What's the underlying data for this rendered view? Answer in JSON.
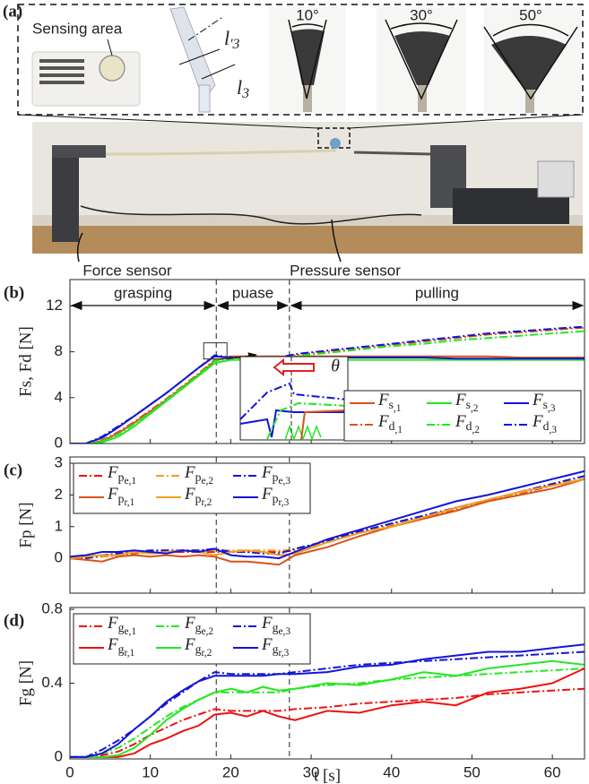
{
  "panel_a": {
    "label": "(a)",
    "sensing_area": "Sensing area",
    "length_top": "l'3",
    "length_bottom": "l3",
    "angles": [
      "10°",
      "30°",
      "50°"
    ],
    "force_sensor": "Force sensor",
    "pressure_sensor": "Pressure sensor"
  },
  "chart_data": [
    {
      "type": "line",
      "panel_label": "(b)",
      "ylabel": "Fs, Fd [N]",
      "xlim": [
        0,
        64
      ],
      "xticks": [
        0,
        10,
        20,
        30,
        40,
        50,
        60
      ],
      "xtick_labels": false,
      "ylim": [
        0,
        14.3
      ],
      "yticks": [
        0,
        4,
        8,
        12
      ],
      "vlines": [
        18.2,
        27.3
      ],
      "phase_labels": [
        "grasping",
        "puase",
        "pulling"
      ],
      "inset_label": "θ",
      "legend": "lower right",
      "x": [
        0,
        2,
        4,
        6,
        8,
        10,
        12,
        14,
        16,
        18,
        20,
        22,
        24,
        26,
        28,
        32,
        36,
        40,
        44,
        48,
        52,
        56,
        60,
        64
      ],
      "series": [
        {
          "name": "Fs,1",
          "color": "#d95319",
          "linestyle": "solid",
          "values": [
            0,
            0,
            0.2,
            0.9,
            1.8,
            2.8,
            3.8,
            4.9,
            6.0,
            7.2,
            7.6,
            7.6,
            7.6,
            7.6,
            7.6,
            7.6,
            7.6,
            7.6,
            7.6,
            7.6,
            7.6,
            7.5,
            7.5,
            7.5
          ]
        },
        {
          "name": "Fs,2",
          "color": "#22e822",
          "linestyle": "solid",
          "values": [
            0,
            0,
            0.1,
            0.6,
            1.5,
            2.6,
            3.7,
            4.8,
            5.9,
            7.0,
            7.3,
            7.3,
            7.3,
            7.3,
            7.3,
            7.3,
            7.3,
            7.3,
            7.3,
            7.3,
            7.3,
            7.3,
            7.3,
            7.3
          ]
        },
        {
          "name": "Fs,3",
          "color": "#1414d8",
          "linestyle": "solid",
          "values": [
            0,
            0,
            0.5,
            1.4,
            2.4,
            3.4,
            4.4,
            5.5,
            6.6,
            7.6,
            7.5,
            7.5,
            7.5,
            7.5,
            7.5,
            7.5,
            7.5,
            7.5,
            7.5,
            7.4,
            7.4,
            7.4,
            7.4,
            7.4
          ]
        },
        {
          "name": "Fd,1",
          "color": "#d95319",
          "linestyle": "dashdot",
          "values": [
            0,
            0,
            0.3,
            1.0,
            1.9,
            2.9,
            3.9,
            5.0,
            6.1,
            7.3,
            7.5,
            7.5,
            7.5,
            7.5,
            7.7,
            8.0,
            8.3,
            8.6,
            8.9,
            9.2,
            9.5,
            9.7,
            9.9,
            10.1
          ]
        },
        {
          "name": "Fd,2",
          "color": "#22e822",
          "linestyle": "dashdot",
          "values": [
            0,
            0,
            0.2,
            0.8,
            1.7,
            2.7,
            3.8,
            4.9,
            6.0,
            7.2,
            7.4,
            7.4,
            7.4,
            7.4,
            7.6,
            7.9,
            8.2,
            8.5,
            8.7,
            9.0,
            9.2,
            9.4,
            9.6,
            9.8
          ]
        },
        {
          "name": "Fd,3",
          "color": "#1414d8",
          "linestyle": "dashdot",
          "values": [
            0,
            0,
            0.6,
            1.5,
            2.4,
            3.4,
            4.4,
            5.5,
            6.6,
            7.7,
            7.5,
            7.5,
            7.5,
            7.5,
            7.8,
            8.1,
            8.4,
            8.7,
            9.0,
            9.3,
            9.6,
            9.8,
            10.0,
            10.2
          ]
        }
      ]
    },
    {
      "type": "line",
      "panel_label": "(c)",
      "ylabel": "Fp [N]",
      "xlim": [
        0,
        64
      ],
      "xticks": [
        0,
        10,
        20,
        30,
        40,
        50,
        60
      ],
      "xtick_labels": false,
      "ylim": [
        -1.1,
        3.2
      ],
      "yticks": [
        0,
        1,
        2,
        3
      ],
      "vlines": [
        18.2,
        27.3
      ],
      "legend": "upper left",
      "x": [
        0,
        2,
        4,
        6,
        8,
        10,
        12,
        14,
        16,
        18,
        20,
        22,
        24,
        26,
        28,
        32,
        36,
        40,
        44,
        48,
        52,
        56,
        60,
        64
      ],
      "series": [
        {
          "name": "Fpe,1",
          "color": "#ee1111",
          "linestyle": "dashdot",
          "values": [
            0,
            0,
            0.05,
            0.1,
            0.15,
            0.2,
            0.2,
            0.2,
            0.2,
            0.2,
            0.2,
            0.2,
            0.2,
            0.2,
            0.25,
            0.5,
            0.8,
            1.05,
            1.3,
            1.55,
            1.8,
            2.05,
            2.3,
            2.5
          ]
        },
        {
          "name": "Fpe,2",
          "color": "#f0a020",
          "linestyle": "dashdot",
          "values": [
            0,
            0,
            0.05,
            0.12,
            0.18,
            0.22,
            0.25,
            0.25,
            0.25,
            0.25,
            0.25,
            0.25,
            0.25,
            0.25,
            0.27,
            0.52,
            0.82,
            1.07,
            1.32,
            1.57,
            1.82,
            2.07,
            2.32,
            2.52
          ]
        },
        {
          "name": "Fpe,3",
          "color": "#1414d8",
          "linestyle": "dashdot",
          "values": [
            0,
            0,
            0.1,
            0.15,
            0.2,
            0.25,
            0.25,
            0.25,
            0.25,
            0.3,
            0.2,
            0.2,
            0.15,
            0.15,
            0.3,
            0.55,
            0.85,
            1.1,
            1.35,
            1.6,
            1.85,
            2.1,
            2.35,
            2.6
          ]
        },
        {
          "name": "Fpr,1",
          "color": "#d95319",
          "linestyle": "solid",
          "values": [
            0,
            -0.05,
            -0.1,
            0.05,
            0.1,
            0.05,
            0.1,
            0.05,
            0.1,
            0.05,
            -0.1,
            -0.1,
            -0.15,
            -0.2,
            0.1,
            0.35,
            0.7,
            1.0,
            1.25,
            1.5,
            1.8,
            2.0,
            2.2,
            2.5
          ]
        },
        {
          "name": "Fpr,2",
          "color": "#f0a020",
          "linestyle": "solid",
          "values": [
            0,
            0.05,
            0.1,
            0.1,
            0.2,
            0.15,
            0.2,
            0.25,
            0.2,
            0.1,
            0.2,
            0.25,
            0.2,
            0.1,
            0.15,
            0.5,
            0.8,
            1.0,
            1.3,
            1.6,
            1.85,
            2.1,
            2.3,
            2.5
          ]
        },
        {
          "name": "Fpr,3",
          "color": "#1414d8",
          "linestyle": "solid",
          "values": [
            0.05,
            0.1,
            0.2,
            0.2,
            0.25,
            0.2,
            0.15,
            0.25,
            0.2,
            0.3,
            0.1,
            0.05,
            0.05,
            0.0,
            0.2,
            0.6,
            0.9,
            1.2,
            1.5,
            1.8,
            2.0,
            2.25,
            2.5,
            2.75
          ]
        }
      ]
    },
    {
      "type": "line",
      "panel_label": "(d)",
      "ylabel": "Fg [N]",
      "xlabel": "t [s]",
      "xlim": [
        0,
        64
      ],
      "xticks": [
        0,
        10,
        20,
        30,
        40,
        50,
        60
      ],
      "xtick_labels": true,
      "ylim": [
        -0.01,
        0.81
      ],
      "yticks": [
        0,
        0.4,
        0.8
      ],
      "vlines": [
        18.2,
        27.3
      ],
      "legend": "upper left",
      "x": [
        0,
        2,
        4,
        6,
        8,
        10,
        12,
        14,
        16,
        18,
        20,
        22,
        24,
        26,
        28,
        32,
        36,
        40,
        44,
        48,
        52,
        56,
        60,
        64
      ],
      "series": [
        {
          "name": "Fge,1",
          "color": "#ee1111",
          "linestyle": "dashdot",
          "values": [
            0,
            0,
            0.01,
            0.03,
            0.07,
            0.12,
            0.16,
            0.2,
            0.23,
            0.26,
            0.25,
            0.25,
            0.25,
            0.25,
            0.26,
            0.27,
            0.29,
            0.3,
            0.31,
            0.32,
            0.34,
            0.35,
            0.36,
            0.37
          ]
        },
        {
          "name": "Fge,2",
          "color": "#22e822",
          "linestyle": "dashdot",
          "values": [
            0,
            0,
            0.02,
            0.05,
            0.1,
            0.16,
            0.22,
            0.27,
            0.31,
            0.35,
            0.35,
            0.35,
            0.35,
            0.35,
            0.37,
            0.39,
            0.4,
            0.42,
            0.43,
            0.44,
            0.45,
            0.46,
            0.47,
            0.48
          ]
        },
        {
          "name": "Fge,3",
          "color": "#1414d8",
          "linestyle": "dashdot",
          "values": [
            0,
            0,
            0.04,
            0.09,
            0.15,
            0.22,
            0.29,
            0.35,
            0.41,
            0.46,
            0.45,
            0.45,
            0.45,
            0.45,
            0.46,
            0.48,
            0.5,
            0.51,
            0.52,
            0.53,
            0.54,
            0.55,
            0.56,
            0.57
          ]
        },
        {
          "name": "Fgr,1",
          "color": "#ee1111",
          "linestyle": "solid",
          "values": [
            0,
            0,
            0,
            0,
            0.02,
            0.07,
            0.1,
            0.14,
            0.17,
            0.23,
            0.24,
            0.22,
            0.25,
            0.22,
            0.2,
            0.25,
            0.24,
            0.28,
            0.3,
            0.28,
            0.35,
            0.37,
            0.4,
            0.48
          ]
        },
        {
          "name": "Fgr,2",
          "color": "#22e822",
          "linestyle": "solid",
          "values": [
            0,
            0,
            0,
            0.01,
            0.05,
            0.12,
            0.2,
            0.26,
            0.31,
            0.35,
            0.37,
            0.35,
            0.38,
            0.36,
            0.37,
            0.4,
            0.39,
            0.42,
            0.46,
            0.44,
            0.48,
            0.5,
            0.52,
            0.5
          ]
        },
        {
          "name": "Fgr,3",
          "color": "#1414d8",
          "linestyle": "solid",
          "values": [
            0,
            0,
            0.02,
            0.07,
            0.15,
            0.22,
            0.3,
            0.36,
            0.41,
            0.44,
            0.44,
            0.44,
            0.44,
            0.45,
            0.45,
            0.46,
            0.49,
            0.5,
            0.53,
            0.55,
            0.57,
            0.57,
            0.59,
            0.61
          ]
        }
      ]
    }
  ]
}
